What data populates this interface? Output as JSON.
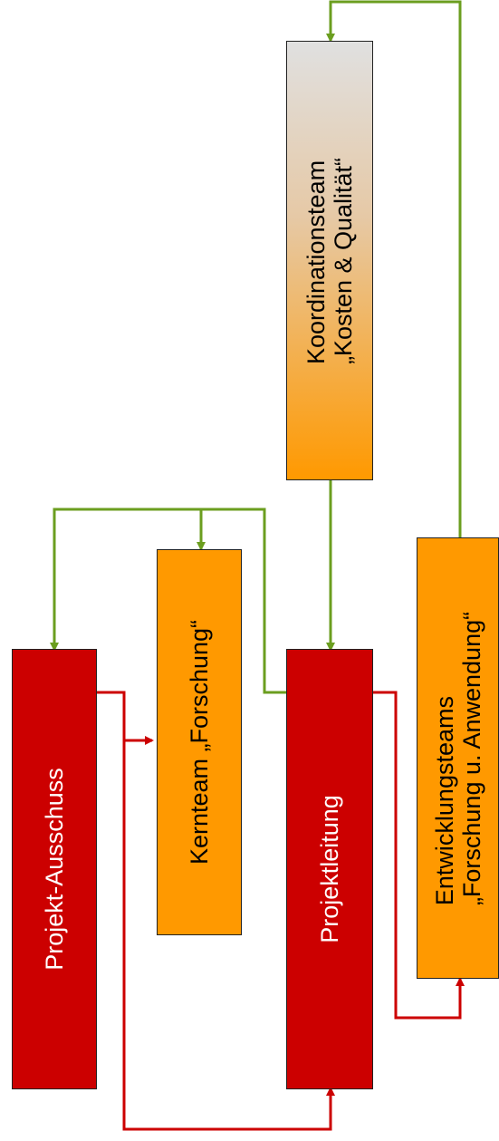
{
  "nodes": {
    "ausschuss": {
      "label": "Projekt-Ausschuss"
    },
    "kernteam": {
      "label": "Kernteam „Forschung“"
    },
    "leitung": {
      "label": "Projektleitung"
    },
    "koordination": {
      "line1": "Koordinationsteam",
      "line2": "„Kosten & Qualität“"
    },
    "entwicklung": {
      "line1": "Entwicklungsteams",
      "line2": "„Forschung u. Anwendung“"
    }
  },
  "colors": {
    "red_box": "#cc0000",
    "orange_box": "#ff9900",
    "gradient_top": "#e0e0e0",
    "red_arrow": "#cc0000",
    "green_arrow": "#6b9e1f"
  }
}
